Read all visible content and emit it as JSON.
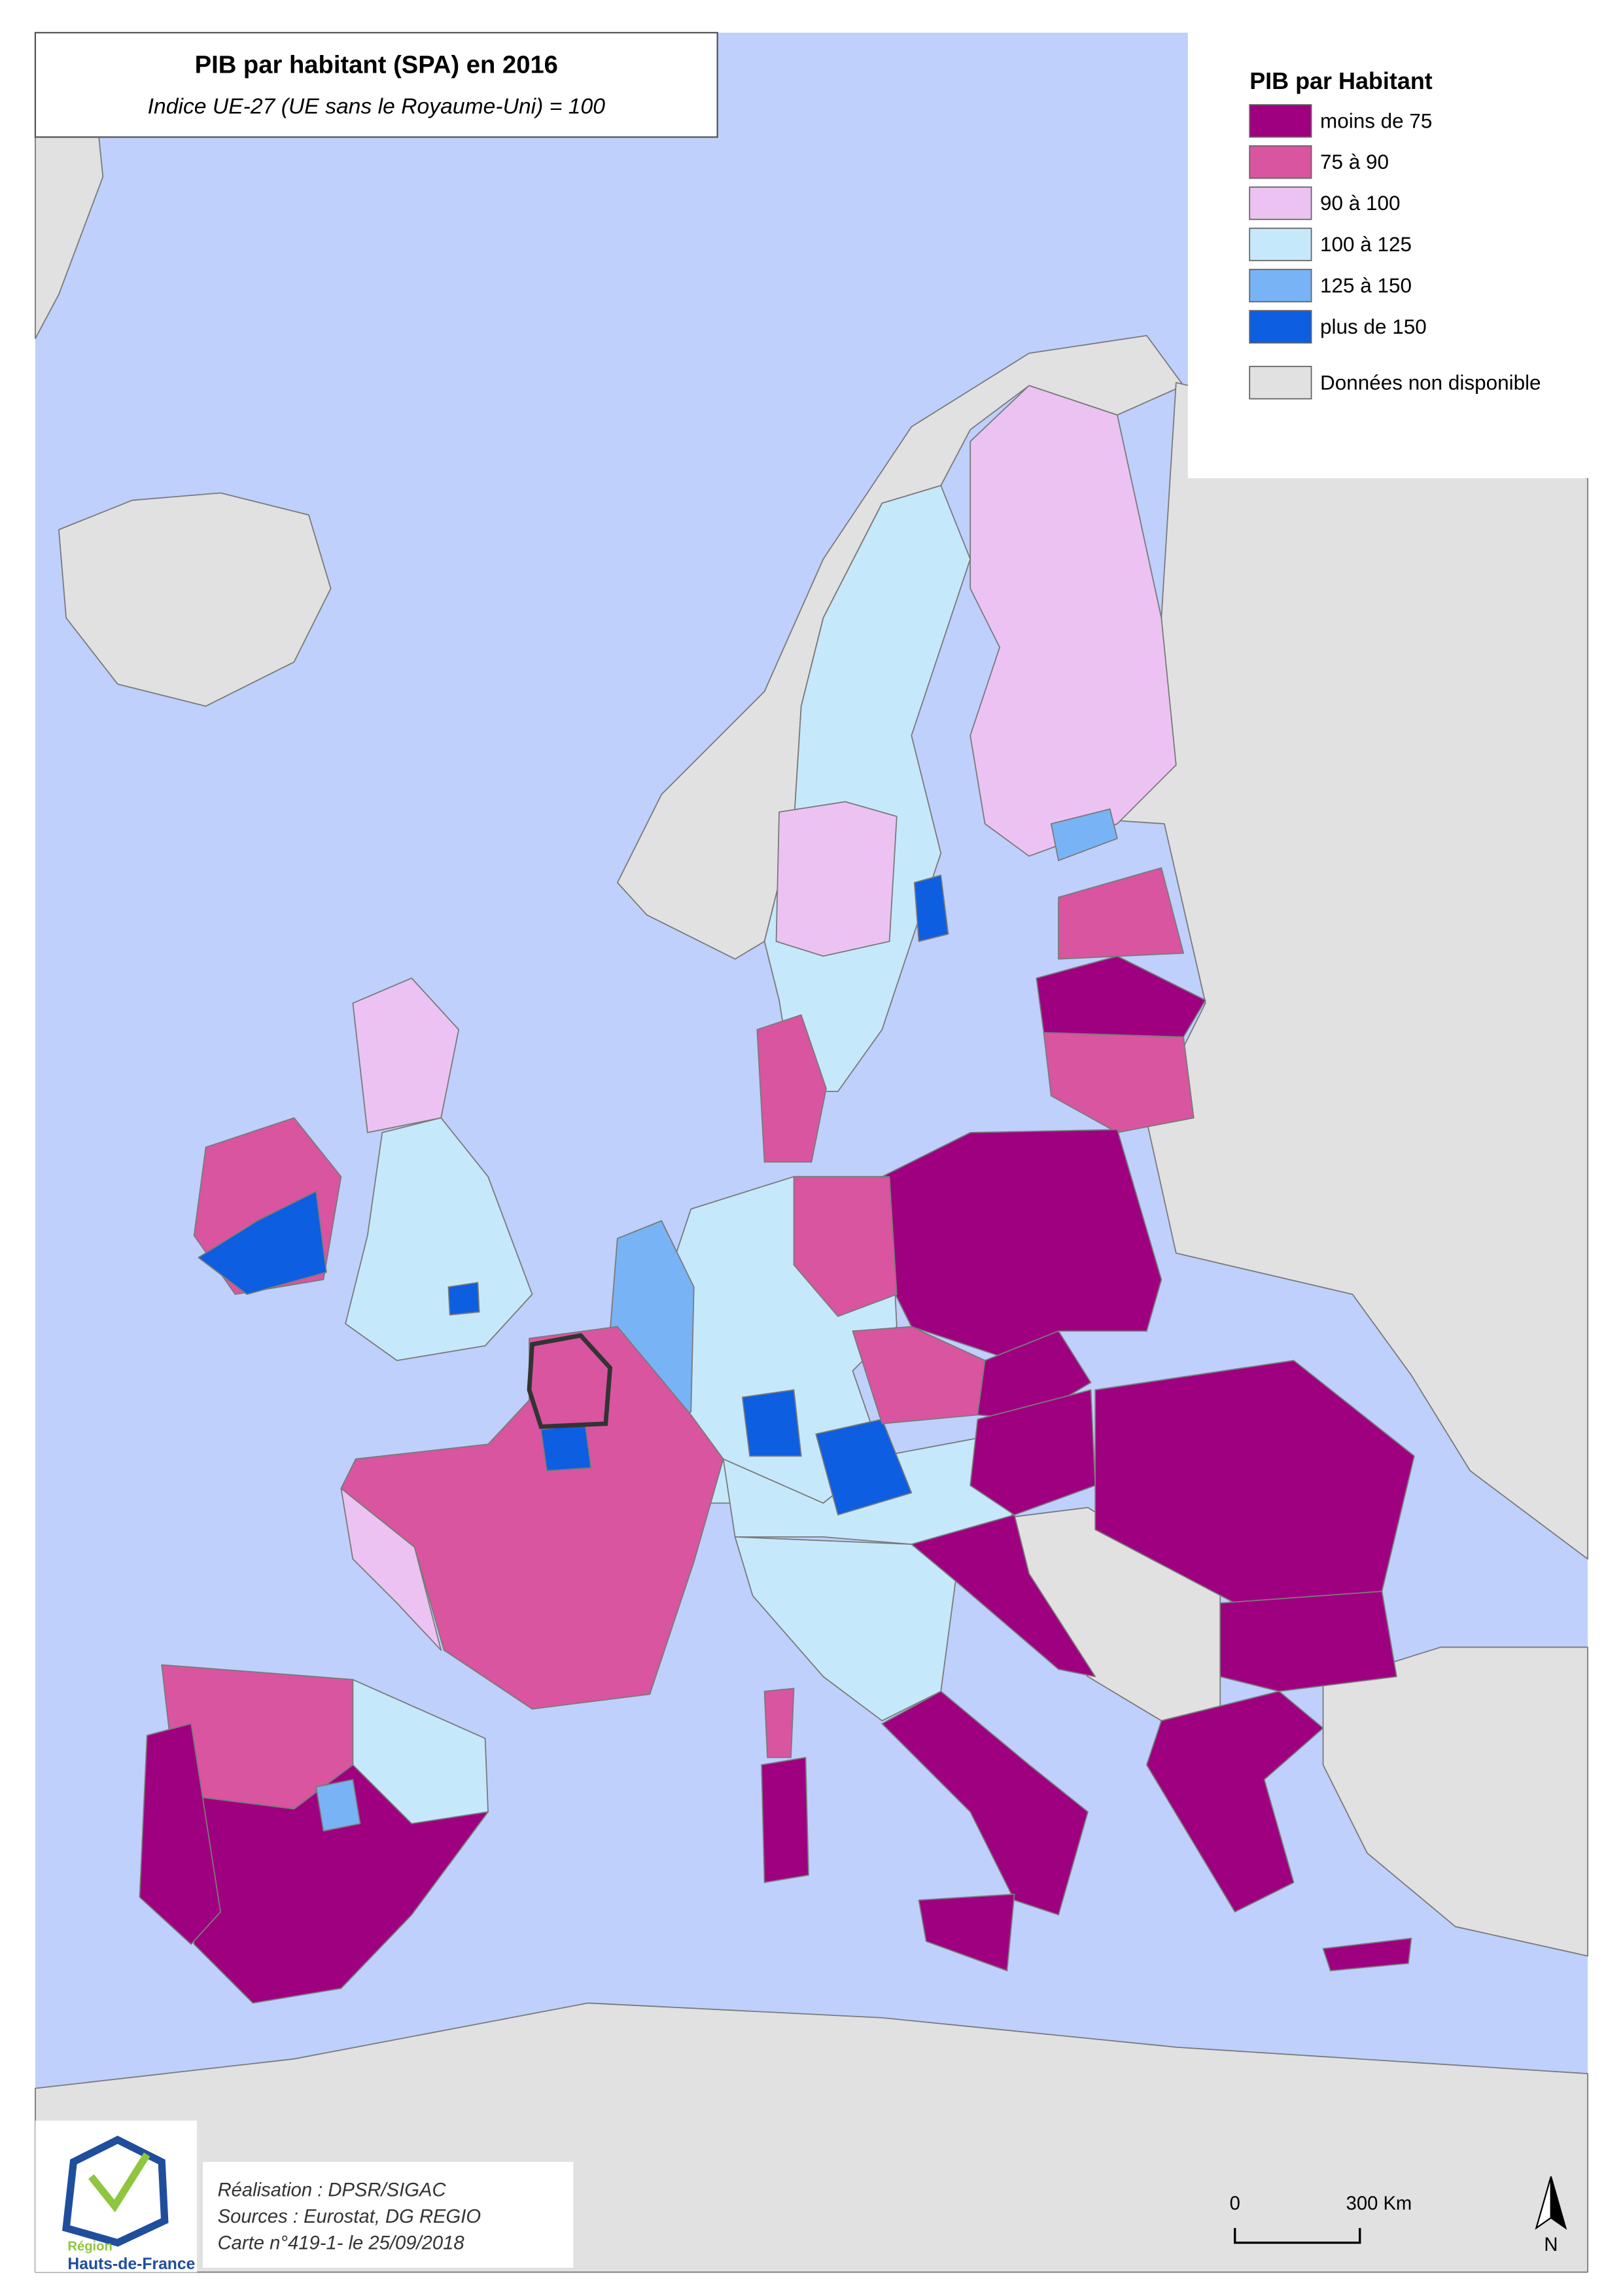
{
  "title": "PIB par habitant (SPA) en 2016",
  "subtitle": "Indice UE-27 (UE sans le Royaume-Uni) = 100",
  "legend": {
    "title": "PIB par Habitant",
    "items": [
      {
        "label": "moins de 75",
        "color": "#9e007f"
      },
      {
        "label": "75 à 90",
        "color": "#d9559f"
      },
      {
        "label": "90 à 100",
        "color": "#ecc2f3"
      },
      {
        "label": "100 à 125",
        "color": "#c6e8fb"
      },
      {
        "label": "125 à 150",
        "color": "#78b3f5"
      },
      {
        "label": "plus de 150",
        "color": "#0d5ee0"
      },
      {
        "label": "Données non disponible",
        "color": "#e1e1e1"
      }
    ]
  },
  "credits": [
    "Réalisation : DPSR/SIGAC",
    "Sources : Eurostat, DG REGIO",
    "Carte n°419-1- le 25/09/2018"
  ],
  "scale": {
    "start": "0",
    "end": "300 Km"
  },
  "north": "N",
  "logo": {
    "region": "Région",
    "name": "Hauts-de-France"
  }
}
